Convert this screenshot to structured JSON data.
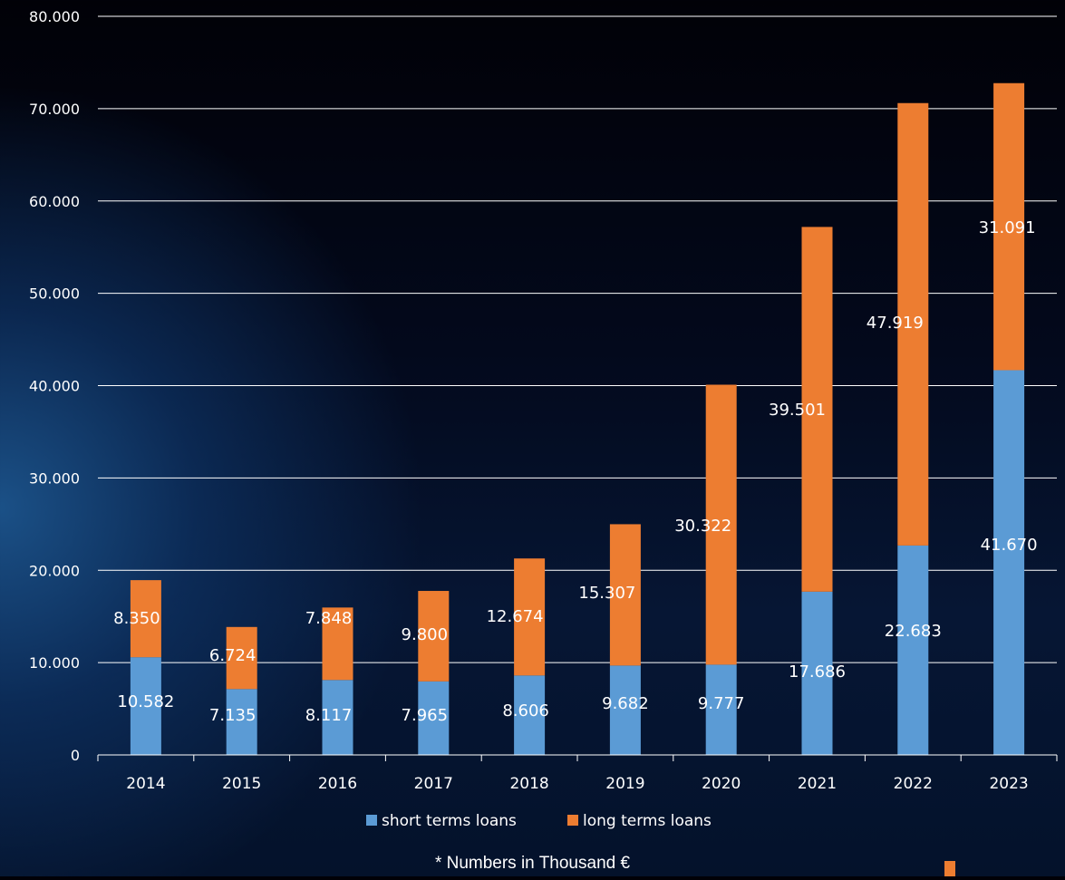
{
  "chart_data": {
    "type": "bar",
    "stacked": true,
    "categories": [
      "2014",
      "2015",
      "2016",
      "2017",
      "2018",
      "2019",
      "2020",
      "2021",
      "2022",
      "2023"
    ],
    "series": [
      {
        "name": "short terms loans",
        "color": "#5b9bd5",
        "values": [
          10582,
          7135,
          8117,
          7965,
          8606,
          9682,
          9777,
          17686,
          22683,
          41670
        ],
        "labels": [
          "10.582",
          "7.135",
          "8.117",
          "7.965",
          "8.606",
          "9.682",
          "9.777",
          "17.686",
          "22.683",
          "41.670"
        ]
      },
      {
        "name": "long terms loans",
        "color": "#ed7d31",
        "values": [
          8350,
          6724,
          7848,
          9800,
          12674,
          15307,
          30322,
          39501,
          47919,
          31091
        ],
        "labels": [
          "8.350",
          "6.724",
          "7.848",
          "9.800",
          "12.674",
          "15.307",
          "30.322",
          "39.501",
          "47.919",
          "31.091"
        ]
      }
    ],
    "ylim": [
      0,
      80000
    ],
    "yticks": [
      0,
      10000,
      20000,
      30000,
      40000,
      50000,
      60000,
      70000,
      80000
    ],
    "ytick_labels": [
      "0",
      "10.000",
      "20.000",
      "30.000",
      "40.000",
      "50.000",
      "60.000",
      "70.000",
      "80.000"
    ],
    "grid": true,
    "legend_position": "bottom",
    "title": "",
    "xlabel": "",
    "ylabel": ""
  },
  "footnote": "* Numbers in Thousand €",
  "colors": {
    "grid": "#ffffff",
    "text": "#ffffff",
    "accent": "#ed7d31"
  }
}
